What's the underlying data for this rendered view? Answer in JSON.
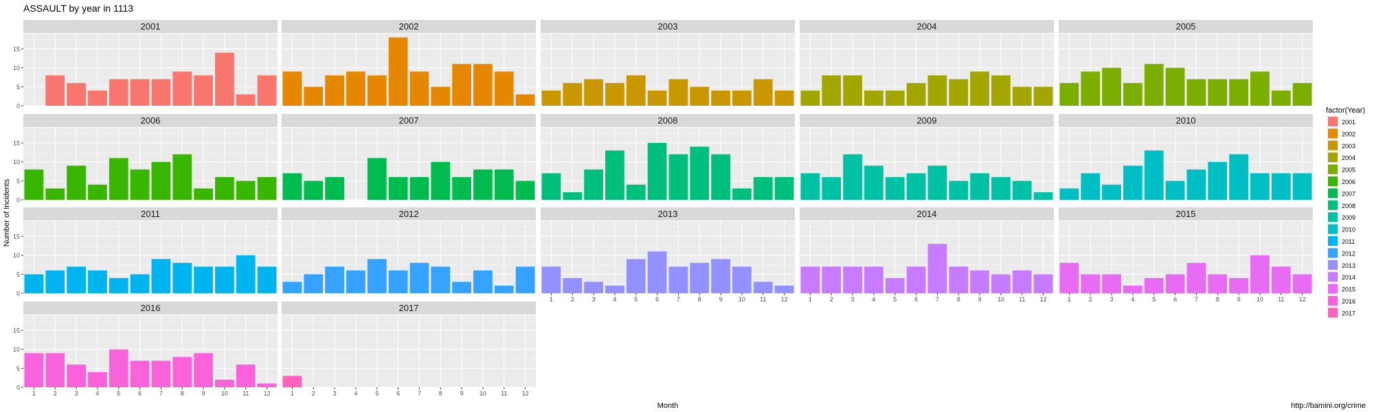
{
  "chart_data": {
    "type": "bar",
    "title": "ASSAULT by year in 1113",
    "xlabel": "Month",
    "ylabel": "Number of Incidents",
    "caption": "http://bamini.org/crime",
    "legend_title": "factor(Year)",
    "legend_position": "right",
    "facet_layout": {
      "columns": 5,
      "rows": 4
    },
    "grid": true,
    "categories": [
      "1",
      "2",
      "3",
      "4",
      "5",
      "6",
      "7",
      "8",
      "9",
      "10",
      "11",
      "12"
    ],
    "ylim": [
      0,
      19
    ],
    "y_ticks": [
      0,
      5,
      10,
      15
    ],
    "series": [
      {
        "name": "2001",
        "color": "#F8766D",
        "values": [
          null,
          8,
          6,
          4,
          7,
          7,
          7,
          9,
          8,
          14,
          3,
          8
        ]
      },
      {
        "name": "2002",
        "color": "#E58700",
        "values": [
          9,
          5,
          8,
          9,
          8,
          18,
          9,
          5,
          11,
          11,
          9,
          3
        ]
      },
      {
        "name": "2003",
        "color": "#C99800",
        "values": [
          4,
          6,
          7,
          6,
          8,
          4,
          7,
          5,
          4,
          4,
          7,
          4
        ]
      },
      {
        "name": "2004",
        "color": "#A3A500",
        "values": [
          4,
          8,
          8,
          4,
          4,
          6,
          8,
          7,
          9,
          8,
          5,
          5
        ]
      },
      {
        "name": "2005",
        "color": "#7CAE00",
        "values": [
          6,
          9,
          10,
          6,
          11,
          10,
          7,
          7,
          7,
          9,
          4,
          6
        ]
      },
      {
        "name": "2006",
        "color": "#39B600",
        "values": [
          8,
          3,
          9,
          4,
          11,
          8,
          10,
          12,
          3,
          6,
          5,
          6
        ]
      },
      {
        "name": "2007",
        "color": "#00BB4E",
        "values": [
          7,
          5,
          6,
          null,
          11,
          6,
          6,
          10,
          6,
          8,
          8,
          5
        ]
      },
      {
        "name": "2008",
        "color": "#00BF7D",
        "values": [
          7,
          2,
          8,
          13,
          4,
          15,
          12,
          14,
          12,
          3,
          6,
          6
        ]
      },
      {
        "name": "2009",
        "color": "#00C1A3",
        "values": [
          7,
          6,
          12,
          9,
          6,
          7,
          9,
          5,
          7,
          6,
          5,
          2
        ]
      },
      {
        "name": "2010",
        "color": "#00BFC4",
        "values": [
          3,
          7,
          4,
          9,
          13,
          5,
          8,
          10,
          12,
          7,
          7,
          7
        ]
      },
      {
        "name": "2011",
        "color": "#00B4EF",
        "values": [
          5,
          6,
          7,
          6,
          4,
          5,
          9,
          8,
          7,
          7,
          10,
          7
        ]
      },
      {
        "name": "2012",
        "color": "#35A2FF",
        "values": [
          3,
          5,
          7,
          6,
          9,
          6,
          8,
          7,
          3,
          6,
          2,
          7
        ]
      },
      {
        "name": "2013",
        "color": "#9590FF",
        "values": [
          7,
          4,
          3,
          2,
          9,
          11,
          7,
          8,
          9,
          7,
          3,
          2
        ]
      },
      {
        "name": "2014",
        "color": "#C77CFF",
        "values": [
          7,
          7,
          7,
          7,
          4,
          7,
          13,
          7,
          6,
          5,
          6,
          5
        ]
      },
      {
        "name": "2015",
        "color": "#E76BF3",
        "values": [
          8,
          5,
          5,
          2,
          4,
          5,
          8,
          5,
          4,
          10,
          7,
          5
        ]
      },
      {
        "name": "2016",
        "color": "#FA62DB",
        "values": [
          9,
          9,
          6,
          4,
          10,
          7,
          7,
          8,
          9,
          2,
          6,
          1
        ]
      },
      {
        "name": "2017",
        "color": "#FF62BC",
        "values": [
          3,
          null,
          null,
          null,
          null,
          null,
          null,
          null,
          null,
          null,
          null,
          null
        ]
      }
    ]
  }
}
